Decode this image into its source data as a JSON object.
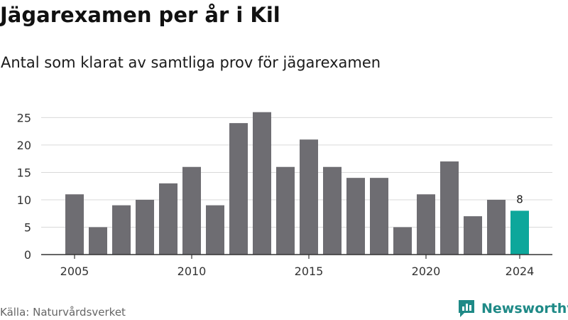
{
  "header": {
    "title": "Jägarexamen per år i Kil",
    "subtitle": "Antal som klarat av samtliga prov för jägarexamen"
  },
  "footer": {
    "source": "Källa: Naturvårdsverket",
    "brand": "Newsworthy",
    "brand_color": "#1f8a87"
  },
  "chart_data": {
    "type": "bar",
    "categories": [
      2005,
      2006,
      2007,
      2008,
      2009,
      2010,
      2011,
      2012,
      2013,
      2014,
      2015,
      2016,
      2017,
      2018,
      2019,
      2020,
      2021,
      2022,
      2023,
      2024
    ],
    "values": [
      11,
      5,
      9,
      10,
      13,
      16,
      9,
      24,
      26,
      16,
      21,
      16,
      14,
      14,
      5,
      11,
      17,
      7,
      10,
      8
    ],
    "x_tick_labels": [
      "2005",
      "2010",
      "2015",
      "2020",
      "2024"
    ],
    "y_ticks": [
      0,
      5,
      10,
      15,
      20,
      25
    ],
    "ylim": [
      0,
      27
    ],
    "grid": true,
    "bar_color": "#6e6d72",
    "highlight_color": "#0da79b",
    "highlight_category": 2024,
    "data_labels": [
      {
        "category": 2024,
        "text": "8"
      }
    ]
  }
}
